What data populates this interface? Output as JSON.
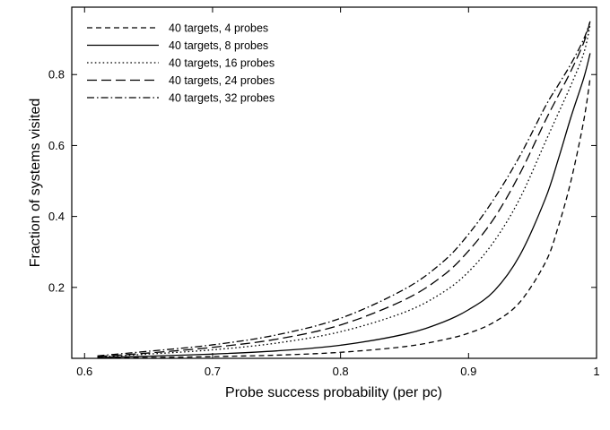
{
  "chart_data": {
    "type": "line",
    "title": "",
    "xlabel": "Probe success probability (per pc)",
    "ylabel": "Fraction of systems visited",
    "xlim": [
      0.59,
      1.0
    ],
    "ylim": [
      0.0,
      0.99
    ],
    "xticks": [
      0.6,
      0.7,
      0.8,
      0.9,
      1.0
    ],
    "xtick_labels": [
      "0.6",
      "0.7",
      "0.8",
      "0.9",
      "1"
    ],
    "yticks": [
      0.2,
      0.4,
      0.6,
      0.8
    ],
    "ytick_labels": [
      "0.2",
      "0.4",
      "0.6",
      "0.8"
    ],
    "legend_position": "top-left",
    "x": [
      0.61,
      0.65,
      0.7,
      0.75,
      0.8,
      0.85,
      0.88,
      0.9,
      0.92,
      0.94,
      0.96,
      0.97,
      0.98,
      0.99,
      0.995
    ],
    "series": [
      {
        "name": "40 targets, 4 probes",
        "dash": "dashed",
        "values": [
          0.001,
          0.002,
          0.005,
          0.009,
          0.017,
          0.033,
          0.052,
          0.071,
          0.102,
          0.158,
          0.27,
          0.37,
          0.5,
          0.67,
          0.79
        ]
      },
      {
        "name": "40 targets, 8 probes",
        "dash": "solid",
        "values": [
          0.002,
          0.006,
          0.012,
          0.021,
          0.037,
          0.068,
          0.102,
          0.137,
          0.19,
          0.29,
          0.45,
          0.56,
          0.68,
          0.79,
          0.86
        ]
      },
      {
        "name": "40 targets, 16 probes",
        "dash": "dotted",
        "values": [
          0.004,
          0.012,
          0.024,
          0.043,
          0.075,
          0.13,
          0.186,
          0.244,
          0.33,
          0.45,
          0.61,
          0.69,
          0.77,
          0.86,
          0.94
        ]
      },
      {
        "name": "40 targets, 24 probes",
        "dash": "longdash",
        "values": [
          0.005,
          0.015,
          0.031,
          0.054,
          0.094,
          0.165,
          0.233,
          0.303,
          0.395,
          0.52,
          0.67,
          0.74,
          0.81,
          0.89,
          0.95
        ]
      },
      {
        "name": "40 targets, 32 probes",
        "dash": "dashdot",
        "values": [
          0.007,
          0.02,
          0.038,
          0.066,
          0.113,
          0.195,
          0.272,
          0.35,
          0.45,
          0.57,
          0.71,
          0.77,
          0.83,
          0.9,
          0.95
        ]
      }
    ]
  }
}
